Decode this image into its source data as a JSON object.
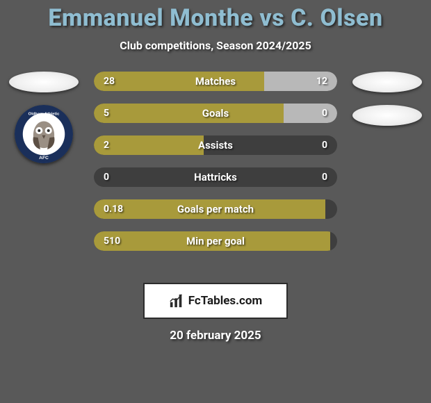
{
  "title": "Emmanuel Monthe vs C. Olsen",
  "subtitle": "Club competitions, Season 2024/2025",
  "date": "20 february 2025",
  "footer_brand": "FcTables.com",
  "colors": {
    "background": "#595959",
    "title": "#8fbdd1",
    "bar_left": "#a89a3b",
    "bar_right": "#b8b8b8",
    "bar_track": "#3e3e3e"
  },
  "bars": [
    {
      "label": "Matches",
      "left": "28",
      "right": "12",
      "left_pct": 70,
      "right_pct": 30,
      "show_right_fill": true
    },
    {
      "label": "Goals",
      "left": "5",
      "right": "0",
      "left_pct": 78,
      "right_pct": 22,
      "show_right_fill": true
    },
    {
      "label": "Assists",
      "left": "2",
      "right": "0",
      "left_pct": 45,
      "right_pct": 0,
      "show_right_fill": false
    },
    {
      "label": "Hattricks",
      "left": "0",
      "right": "0",
      "left_pct": 0,
      "right_pct": 0,
      "show_right_fill": false
    },
    {
      "label": "Goals per match",
      "left": "0.18",
      "right": "",
      "left_pct": 95,
      "right_pct": 0,
      "show_right_fill": false
    },
    {
      "label": "Min per goal",
      "left": "510",
      "right": "",
      "left_pct": 97,
      "right_pct": 0,
      "show_right_fill": false
    }
  ],
  "right_ellipses": 2,
  "left_badge": {
    "ring_color": "#1a2f5a",
    "inner_color": "#ffffff",
    "owl_body": "#9a8f84",
    "owl_dark": "#5c4f44"
  }
}
